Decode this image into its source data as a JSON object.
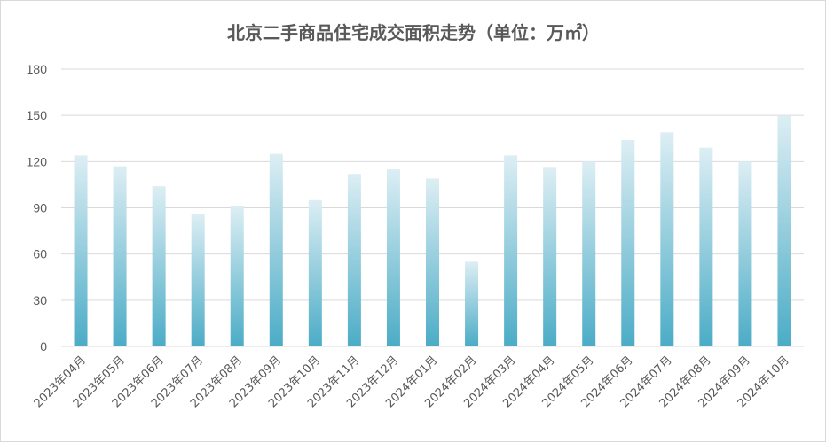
{
  "chart_data": {
    "type": "bar",
    "title": "北京二手商品住宅成交面积走势（单位：万㎡）",
    "xlabel": "",
    "ylabel": "",
    "ylim": [
      0,
      180
    ],
    "yticks": [
      0,
      30,
      60,
      90,
      120,
      150,
      180
    ],
    "grid": true,
    "legend": "none",
    "categories": [
      "2023年04月",
      "2023年05月",
      "2023年06月",
      "2023年07月",
      "2023年08月",
      "2023年09月",
      "2023年10月",
      "2023年11月",
      "2023年12月",
      "2024年01月",
      "2024年02月",
      "2024年03月",
      "2024年04月",
      "2024年05月",
      "2024年06月",
      "2024年07月",
      "2024年08月",
      "2024年09月",
      "2024年10月"
    ],
    "values": [
      124,
      117,
      104,
      86,
      91,
      125,
      95,
      112,
      115,
      109,
      55,
      124,
      116,
      120,
      134,
      139,
      129,
      120,
      150
    ],
    "colors": {
      "bar_bottom": "#4bacc6",
      "bar_top": "#ddeef4",
      "grid": "#d9d9d9",
      "text": "#595959"
    }
  }
}
